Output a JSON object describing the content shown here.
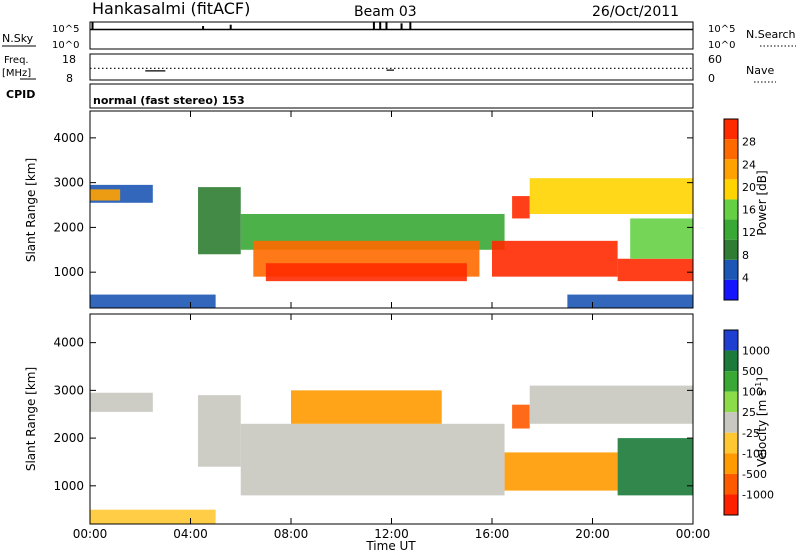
{
  "header": {
    "station": "Hankasalmi (fitACF)",
    "beam": "Beam 03",
    "date": "26/Oct/2011"
  },
  "colors": {
    "power": [
      "#1414ff",
      "#1c57b5",
      "#2e7d32",
      "#3aa835",
      "#66d044",
      "#ffd400",
      "#ffa200",
      "#ff6a00",
      "#ff2a00"
    ],
    "velocity": [
      "#1e3fcf",
      "#1c7a3a",
      "#3aa835",
      "#8cdc4a",
      "#c8c8c0",
      "#ffc832",
      "#ff9a00",
      "#ff5a00",
      "#ff2000"
    ],
    "grey": "#c8c8c0"
  },
  "chart_data": [
    {
      "type": "line",
      "name": "N.Sky / N.Search",
      "left_label": "N.Sky",
      "right_label": "N.Search",
      "ticks_left": [
        "10^5",
        "10^0"
      ],
      "ticks_right": [
        "10^5",
        "10^0"
      ],
      "x_range_hours": [
        0,
        24
      ],
      "baseline_level": 0.72,
      "spikes": [
        {
          "t": 0.1,
          "level": 1.0
        },
        {
          "t": 4.5,
          "level": 0.85
        },
        {
          "t": 5.6,
          "level": 0.9
        },
        {
          "t": 11.3,
          "level": 1.0
        },
        {
          "t": 11.55,
          "level": 1.0
        },
        {
          "t": 11.8,
          "level": 1.0
        },
        {
          "t": 12.4,
          "level": 0.95
        },
        {
          "t": 12.75,
          "level": 0.98
        }
      ]
    },
    {
      "type": "line",
      "name": "Freq / Nave",
      "left_label": "Freq.",
      "left_unit": "[MHz]",
      "right_label": "Nave",
      "ticks_left": [
        "18",
        "8"
      ],
      "ticks_right": [
        "60",
        "0"
      ],
      "freq_mhz": 12.5,
      "freq_dip": [
        {
          "t_start": 2.2,
          "t_end": 3.0,
          "freq_mhz": 11.5
        },
        {
          "t_start": 11.8,
          "t_end": 12.1,
          "freq_mhz": 11.8
        }
      ]
    },
    {
      "type": "table",
      "name": "CPID",
      "label": "CPID",
      "mode_text": "normal (fast stereo) 153"
    },
    {
      "type": "heatmap",
      "name": "Power",
      "ylabel": "Slant Range [km]",
      "yticks": [
        1000,
        2000,
        3000,
        4000
      ],
      "ylim": [
        200,
        4600
      ],
      "x_range_hours": [
        0,
        24
      ],
      "colorbar": {
        "label": "Power [dB]",
        "ticks": [
          4,
          8,
          12,
          16,
          20,
          24,
          28
        ],
        "range": [
          0,
          32
        ]
      },
      "bands": [
        {
          "t_start": 0.0,
          "t_end": 2.5,
          "r_low": 2550,
          "r_high": 2950,
          "color": "#1c57b5"
        },
        {
          "t_start": 0.0,
          "t_end": 1.2,
          "r_low": 2600,
          "r_high": 2850,
          "color": "#ffa200"
        },
        {
          "t_start": 4.3,
          "t_end": 6.0,
          "r_low": 1400,
          "r_high": 2900,
          "color": "#2e7d32"
        },
        {
          "t_start": 6.0,
          "t_end": 16.5,
          "r_low": 1500,
          "r_high": 2300,
          "color": "#3aa835"
        },
        {
          "t_start": 6.5,
          "t_end": 15.5,
          "r_low": 900,
          "r_high": 1700,
          "color": "#ff6a00"
        },
        {
          "t_start": 7.0,
          "t_end": 15.0,
          "r_low": 800,
          "r_high": 1200,
          "color": "#ff2a00"
        },
        {
          "t_start": 16.0,
          "t_end": 21.0,
          "r_low": 900,
          "r_high": 1700,
          "color": "#ff2a00"
        },
        {
          "t_start": 16.8,
          "t_end": 17.5,
          "r_low": 2200,
          "r_high": 2700,
          "color": "#ff2a00"
        },
        {
          "t_start": 17.5,
          "t_end": 24.0,
          "r_low": 2300,
          "r_high": 3100,
          "color": "#ffd400"
        },
        {
          "t_start": 21.0,
          "t_end": 24.0,
          "r_low": 800,
          "r_high": 1300,
          "color": "#ff2a00"
        },
        {
          "t_start": 21.5,
          "t_end": 24.0,
          "r_low": 1300,
          "r_high": 2200,
          "color": "#66d044"
        },
        {
          "t_start": 0.0,
          "t_end": 5.0,
          "r_low": 200,
          "r_high": 500,
          "color": "#1c57b5"
        },
        {
          "t_start": 19.0,
          "t_end": 24.0,
          "r_low": 200,
          "r_high": 500,
          "color": "#1c57b5"
        }
      ]
    },
    {
      "type": "heatmap",
      "name": "Velocity",
      "ylabel": "Slant Range [km]",
      "yticks": [
        1000,
        2000,
        3000,
        4000
      ],
      "ylim": [
        200,
        4600
      ],
      "x_range_hours": [
        0,
        24
      ],
      "xticks": [
        "00:00",
        "04:00",
        "08:00",
        "12:00",
        "16:00",
        "20:00",
        "00:00"
      ],
      "xlabel": "Time UT",
      "colorbar": {
        "label": "Velocity [m s",
        "label_sup": "-1",
        "label_end": "]",
        "ticks": [
          "1000",
          "500",
          "100",
          "25",
          "-25",
          "-100",
          "-500",
          "-1000"
        ]
      },
      "bands": [
        {
          "t_start": 0.0,
          "t_end": 2.5,
          "r_low": 2550,
          "r_high": 2950,
          "color": "#c8c8c0"
        },
        {
          "t_start": 4.3,
          "t_end": 6.0,
          "r_low": 1400,
          "r_high": 2900,
          "color": "#c8c8c0"
        },
        {
          "t_start": 6.0,
          "t_end": 16.5,
          "r_low": 800,
          "r_high": 2300,
          "color": "#c8c8c0"
        },
        {
          "t_start": 16.5,
          "t_end": 21.0,
          "r_low": 900,
          "r_high": 1700,
          "color": "#ff9a00"
        },
        {
          "t_start": 16.8,
          "t_end": 17.5,
          "r_low": 2200,
          "r_high": 2700,
          "color": "#ff5a00"
        },
        {
          "t_start": 17.5,
          "t_end": 24.0,
          "r_low": 2300,
          "r_high": 3100,
          "color": "#c8c8c0"
        },
        {
          "t_start": 21.0,
          "t_end": 24.0,
          "r_low": 800,
          "r_high": 2000,
          "color": "#1c7a3a"
        },
        {
          "t_start": 0.0,
          "t_end": 5.0,
          "r_low": 200,
          "r_high": 500,
          "color": "#ffc832"
        },
        {
          "t_start": 8.0,
          "t_end": 14.0,
          "r_low": 2300,
          "r_high": 3000,
          "color": "#ff9a00"
        }
      ]
    }
  ]
}
